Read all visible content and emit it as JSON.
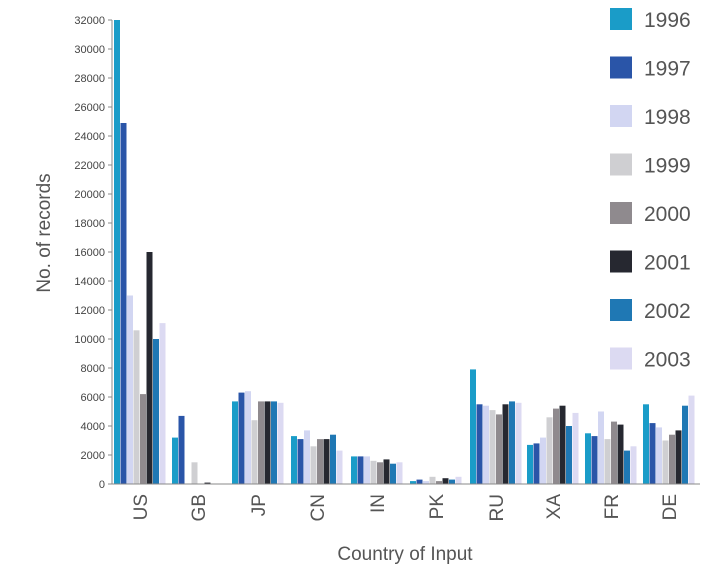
{
  "chart_data": {
    "type": "bar",
    "xlabel": "Country of Input",
    "ylabel": "No. of records",
    "ylim": [
      0,
      32000
    ],
    "yticks": [
      0,
      2000,
      4000,
      6000,
      8000,
      10000,
      12000,
      14000,
      16000,
      18000,
      20000,
      22000,
      24000,
      26000,
      28000,
      30000,
      32000
    ],
    "categories": [
      "US",
      "GB",
      "JP",
      "CN",
      "IN",
      "PK",
      "RU",
      "XA",
      "FR",
      "DE"
    ],
    "legend_position": "right",
    "grid": false,
    "series": [
      {
        "name": "1996",
        "color": "#1a9cc8",
        "values": [
          32000,
          3200,
          5700,
          3300,
          1900,
          200,
          7900,
          2700,
          3500,
          5500
        ]
      },
      {
        "name": "1997",
        "color": "#2a55a8",
        "values": [
          24900,
          4700,
          6300,
          3100,
          1900,
          300,
          5500,
          2800,
          3300,
          4200
        ]
      },
      {
        "name": "1998",
        "color": "#d2d6f2",
        "values": [
          13000,
          0,
          6400,
          3700,
          1900,
          200,
          5400,
          3200,
          5000,
          3900
        ]
      },
      {
        "name": "1999",
        "color": "#cfcfd2",
        "values": [
          10600,
          1500,
          4400,
          2600,
          1600,
          500,
          5100,
          4600,
          3100,
          3000
        ]
      },
      {
        "name": "2000",
        "color": "#8f8a8e",
        "values": [
          6200,
          0,
          5700,
          3100,
          1500,
          200,
          4800,
          5200,
          4300,
          3400
        ]
      },
      {
        "name": "2001",
        "color": "#262830",
        "values": [
          16000,
          100,
          5700,
          3100,
          1700,
          400,
          5500,
          5400,
          4100,
          3700
        ]
      },
      {
        "name": "2002",
        "color": "#1f78b4",
        "values": [
          10000,
          0,
          5700,
          3400,
          1400,
          300,
          5700,
          4000,
          2300,
          5400
        ]
      },
      {
        "name": "2003",
        "color": "#dcdaf2",
        "values": [
          11100,
          0,
          5600,
          2300,
          1500,
          500,
          5600,
          4900,
          2600,
          6100
        ]
      }
    ]
  }
}
